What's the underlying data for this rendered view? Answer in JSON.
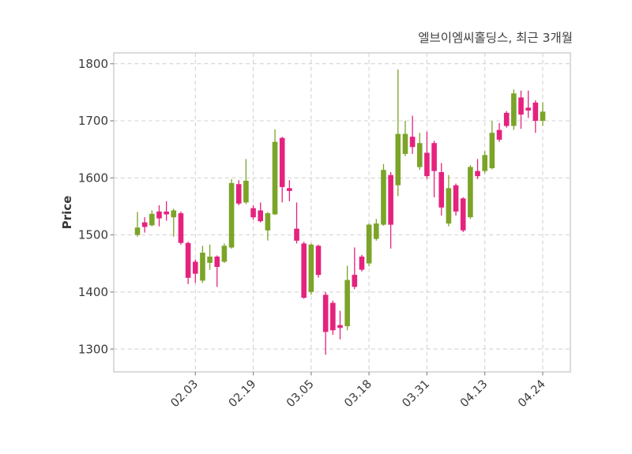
{
  "title": "엘브이엠씨홀딩스, 최근 3개월",
  "chart_data": {
    "type": "candlestick",
    "title": "엘브이엠씨홀딩스, 최근 3개월",
    "ylabel": "Price",
    "xlabel": "",
    "grid": "dashed",
    "ylim": [
      1260,
      1819
    ],
    "y_ticks": [
      1300,
      1400,
      1500,
      1600,
      1700,
      1800
    ],
    "x_tick_labels": [
      "02.03",
      "02.19",
      "03.05",
      "03.18",
      "03.31",
      "04.13",
      "04.24"
    ],
    "x_tick_indices": [
      8,
      16,
      24,
      32,
      40,
      48,
      56
    ],
    "colors": {
      "up": "#7ba428",
      "down": "#e5227e",
      "grid": "#d3d3d3",
      "spine": "#d7d7d7",
      "text": "#3a3a3a",
      "tick": "#8c8c8c"
    },
    "candles_format": [
      "open",
      "high",
      "low",
      "close"
    ],
    "candles": [
      [
        1500,
        1540,
        1497,
        1513
      ],
      [
        1522,
        1531,
        1504,
        1514
      ],
      [
        1517,
        1543,
        1515,
        1537
      ],
      [
        1541,
        1552,
        1515,
        1529
      ],
      [
        1541,
        1559,
        1525,
        1536
      ],
      [
        1531,
        1546,
        1497,
        1543
      ],
      [
        1538,
        1541,
        1483,
        1486
      ],
      [
        1486,
        1488,
        1414,
        1425
      ],
      [
        1453,
        1457,
        1416,
        1432
      ],
      [
        1420,
        1481,
        1416,
        1469
      ],
      [
        1451,
        1483,
        1439,
        1462
      ],
      [
        1462,
        1464,
        1409,
        1444
      ],
      [
        1453,
        1485,
        1451,
        1481
      ],
      [
        1478,
        1598,
        1476,
        1591
      ],
      [
        1589,
        1596,
        1552,
        1555
      ],
      [
        1557,
        1633,
        1554,
        1595
      ],
      [
        1547,
        1552,
        1527,
        1531
      ],
      [
        1543,
        1557,
        1522,
        1524
      ],
      [
        1508,
        1540,
        1490,
        1538
      ],
      [
        1536,
        1685,
        1535,
        1663
      ],
      [
        1670,
        1672,
        1557,
        1584
      ],
      [
        1582,
        1596,
        1559,
        1577
      ],
      [
        1511,
        1557,
        1485,
        1490
      ],
      [
        1485,
        1488,
        1388,
        1390
      ],
      [
        1400,
        1485,
        1395,
        1483
      ],
      [
        1481,
        1483,
        1425,
        1430
      ],
      [
        1395,
        1400,
        1290,
        1330
      ],
      [
        1381,
        1385,
        1325,
        1333
      ],
      [
        1342,
        1367,
        1317,
        1337
      ],
      [
        1340,
        1446,
        1333,
        1421
      ],
      [
        1430,
        1478,
        1405,
        1409
      ],
      [
        1462,
        1465,
        1436,
        1439
      ],
      [
        1450,
        1520,
        1445,
        1518
      ],
      [
        1493,
        1528,
        1490,
        1520
      ],
      [
        1518,
        1624,
        1516,
        1614
      ],
      [
        1605,
        1610,
        1476,
        1518
      ],
      [
        1587,
        1790,
        1568,
        1677
      ],
      [
        1642,
        1700,
        1638,
        1677
      ],
      [
        1672,
        1709,
        1642,
        1654
      ],
      [
        1619,
        1679,
        1614,
        1661
      ],
      [
        1644,
        1681,
        1598,
        1603
      ],
      [
        1661,
        1665,
        1566,
        1612
      ],
      [
        1610,
        1626,
        1534,
        1548
      ],
      [
        1520,
        1605,
        1515,
        1582
      ],
      [
        1587,
        1590,
        1534,
        1541
      ],
      [
        1564,
        1566,
        1505,
        1508
      ],
      [
        1531,
        1622,
        1528,
        1619
      ],
      [
        1612,
        1633,
        1598,
        1603
      ],
      [
        1612,
        1647,
        1608,
        1640
      ],
      [
        1617,
        1700,
        1615,
        1679
      ],
      [
        1684,
        1696,
        1663,
        1667
      ],
      [
        1714,
        1717,
        1688,
        1691
      ],
      [
        1691,
        1755,
        1684,
        1748
      ],
      [
        1741,
        1753,
        1686,
        1711
      ],
      [
        1723,
        1753,
        1705,
        1718
      ],
      [
        1732,
        1736,
        1679,
        1700
      ],
      [
        1700,
        1732,
        1691,
        1716
      ]
    ]
  }
}
